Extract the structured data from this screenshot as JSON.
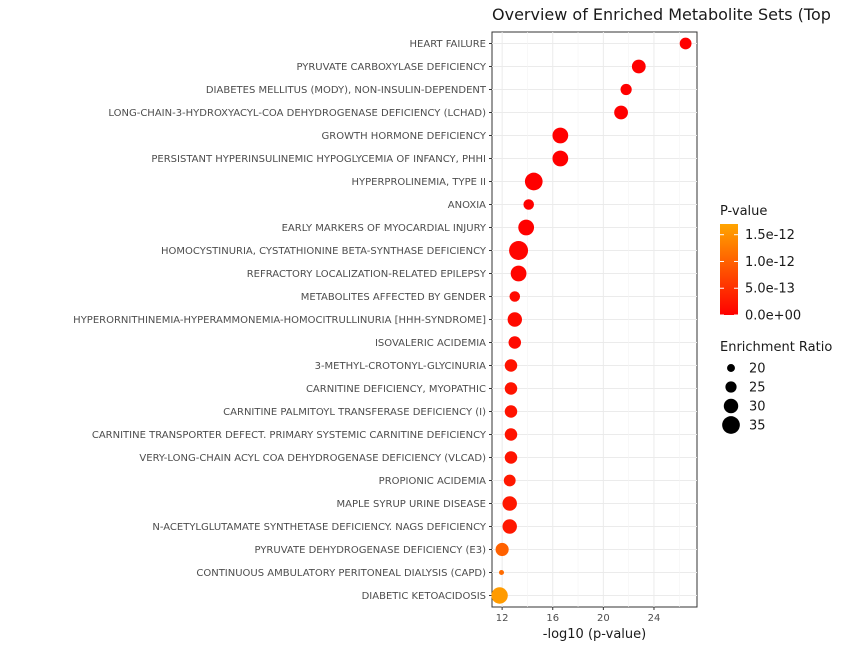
{
  "chart_data": {
    "type": "scatter",
    "title": "Overview of Enriched Metabolite Sets (Top",
    "xlabel": "-log10 (p-value)",
    "ylabel": "",
    "xlim": [
      11.2,
      27.4
    ],
    "x_ticks": [
      12,
      16,
      20,
      24
    ],
    "grid": true,
    "legend_position": "right",
    "color_scale": {
      "low": "#FF0000",
      "high": "#FFA500",
      "min": 0,
      "max": 1.7e-12
    },
    "size_scale": {
      "min_value": 15.5,
      "max_value": 37,
      "min_radius": 2.5,
      "max_radius": 9.5
    },
    "legend_color": {
      "title": "P-value",
      "entries": [
        {
          "label": "1.5e-12",
          "value": 1.5e-12
        },
        {
          "label": "1.0e-12",
          "value": 1e-12
        },
        {
          "label": "5.0e-13",
          "value": 5e-13
        },
        {
          "label": "0.0e+00",
          "value": 0
        }
      ]
    },
    "legend_size": {
      "title": "Enrichment Ratio",
      "entries": [
        {
          "label": "20",
          "value": 20
        },
        {
          "label": "25",
          "value": 25
        },
        {
          "label": "30",
          "value": 30
        },
        {
          "label": "35",
          "value": 35
        }
      ]
    },
    "points": [
      {
        "name": "HEART FAILURE",
        "x": 26.5,
        "ratio": 26,
        "pvalue": 3.2e-27
      },
      {
        "name": "PYRUVATE CARBOXYLASE DEFICIENCY",
        "x": 22.8,
        "ratio": 29,
        "pvalue": 1.6e-23
      },
      {
        "name": "DIABETES MELLITUS (MODY), NON-INSULIN-DEPENDENT",
        "x": 21.8,
        "ratio": 25,
        "pvalue": 1.6e-22
      },
      {
        "name": "LONG-CHAIN-3-HYDROXYACYL-COA DEHYDROGENASE DEFICIENCY (LCHAD)",
        "x": 21.4,
        "ratio": 29,
        "pvalue": 4e-22
      },
      {
        "name": "GROWTH HORMONE DEFICIENCY",
        "x": 16.6,
        "ratio": 32,
        "pvalue": 2.5e-17
      },
      {
        "name": "PERSISTANT HYPERINSULINEMIC HYPOGLYCEMIA OF INFANCY, PHHI",
        "x": 16.6,
        "ratio": 32,
        "pvalue": 2.5e-17
      },
      {
        "name": "HYPERPROLINEMIA, TYPE II",
        "x": 14.5,
        "ratio": 35,
        "pvalue": 3.2e-15
      },
      {
        "name": "ANOXIA",
        "x": 14.1,
        "ratio": 24,
        "pvalue": 7.9e-15
      },
      {
        "name": "EARLY MARKERS OF MYOCARDIAL INJURY",
        "x": 13.9,
        "ratio": 32,
        "pvalue": 1.3e-14
      },
      {
        "name": "HOMOCYSTINURIA, CYSTATHIONINE BETA-SYNTHASE DEFICIENCY",
        "x": 13.3,
        "ratio": 37,
        "pvalue": 5e-14
      },
      {
        "name": "REFRACTORY LOCALIZATION-RELATED EPILEPSY",
        "x": 13.3,
        "ratio": 32,
        "pvalue": 5e-14
      },
      {
        "name": "METABOLITES AFFECTED BY GENDER",
        "x": 13.0,
        "ratio": 24,
        "pvalue": 1e-13
      },
      {
        "name": "HYPERORNITHINEMIA-HYPERAMMONEMIA-HOMOCITRULLINURIA [HHH-SYNDROME]",
        "x": 13.0,
        "ratio": 30,
        "pvalue": 1e-13
      },
      {
        "name": "ISOVALERIC ACIDEMIA",
        "x": 13.0,
        "ratio": 27,
        "pvalue": 1e-13
      },
      {
        "name": "3-METHYL-CROTONYL-GLYCINURIA",
        "x": 12.7,
        "ratio": 27,
        "pvalue": 2e-13
      },
      {
        "name": "CARNITINE DEFICIENCY, MYOPATHIC",
        "x": 12.7,
        "ratio": 27,
        "pvalue": 2e-13
      },
      {
        "name": "CARNITINE PALMITOYL TRANSFERASE DEFICIENCY (I)",
        "x": 12.7,
        "ratio": 27,
        "pvalue": 2e-13
      },
      {
        "name": "CARNITINE TRANSPORTER DEFECT. PRIMARY SYSTEMIC CARNITINE DEFICIENCY",
        "x": 12.7,
        "ratio": 27,
        "pvalue": 2e-13
      },
      {
        "name": "VERY-LONG-CHAIN ACYL COA DEHYDROGENASE DEFICIENCY (VLCAD)",
        "x": 12.7,
        "ratio": 27,
        "pvalue": 2e-13
      },
      {
        "name": "PROPIONIC ACIDEMIA",
        "x": 12.6,
        "ratio": 26,
        "pvalue": 2.5e-13
      },
      {
        "name": "MAPLE SYRUP URINE DISEASE",
        "x": 12.6,
        "ratio": 30,
        "pvalue": 2.5e-13
      },
      {
        "name": "N-ACETYLGLUTAMATE SYNTHETASE DEFICIENCY. NAGS DEFICIENCY",
        "x": 12.6,
        "ratio": 30,
        "pvalue": 2.5e-13
      },
      {
        "name": "PYRUVATE DEHYDROGENASE DEFICIENCY (E3)",
        "x": 12.0,
        "ratio": 28,
        "pvalue": 1e-12
      },
      {
        "name": "CONTINUOUS AMBULATORY PERITONEAL DIALYSIS (CAPD)",
        "x": 11.95,
        "ratio": 15.5,
        "pvalue": 1.1e-12
      },
      {
        "name": "DIABETIC KETOACIDOSIS",
        "x": 11.8,
        "ratio": 33,
        "pvalue": 1.6e-12
      }
    ]
  }
}
